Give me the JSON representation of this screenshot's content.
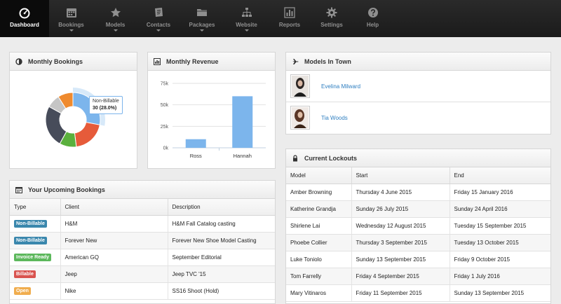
{
  "nav": {
    "items": [
      {
        "label": "Dashboard",
        "icon": "dashboard-gauge-icon",
        "active": true,
        "dropdown": false
      },
      {
        "label": "Bookings",
        "icon": "calendar-icon",
        "active": false,
        "dropdown": true
      },
      {
        "label": "Models",
        "icon": "star-icon",
        "active": false,
        "dropdown": true
      },
      {
        "label": "Contacts",
        "icon": "address-book-icon",
        "active": false,
        "dropdown": true
      },
      {
        "label": "Packages",
        "icon": "folder-icon",
        "active": false,
        "dropdown": true
      },
      {
        "label": "Website",
        "icon": "sitemap-icon",
        "active": false,
        "dropdown": true
      },
      {
        "label": "Reports",
        "icon": "bar-chart-icon",
        "active": false,
        "dropdown": false
      },
      {
        "label": "Settings",
        "icon": "gear-icon",
        "active": false,
        "dropdown": false
      },
      {
        "label": "Help",
        "icon": "help-icon",
        "active": false,
        "dropdown": false
      }
    ]
  },
  "monthly_bookings": {
    "title": "Monthly Bookings",
    "tooltip": {
      "label": "Non-Billable",
      "value": "30 (28.0%)"
    },
    "chart_data": {
      "type": "pie",
      "slices": [
        {
          "name": "Non-Billable",
          "value": 28.0,
          "color": "#7cb5ec",
          "highlight": true
        },
        {
          "name": "",
          "value": 20,
          "color": "#e65b3a"
        },
        {
          "name": "",
          "value": 10,
          "color": "#5ab03d"
        },
        {
          "name": "",
          "value": 25,
          "color": "#474c5a"
        },
        {
          "name": "",
          "value": 8,
          "color": "#c5c5c5"
        },
        {
          "name": "",
          "value": 9,
          "color": "#ef8a2e"
        }
      ]
    }
  },
  "monthly_revenue": {
    "title": "Monthly Revenue",
    "chart_data": {
      "type": "bar",
      "categories": [
        "Ross",
        "Hannah"
      ],
      "values": [
        10000,
        60000
      ],
      "ylim": [
        0,
        75000
      ],
      "yticks": [
        "0k",
        "25k",
        "50k",
        "75k"
      ],
      "ytick_values": [
        0,
        25000,
        50000,
        75000
      ],
      "color": "#7cb5ec",
      "grid": true
    }
  },
  "models_in_town": {
    "title": "Models In Town",
    "models": [
      {
        "name": "Evelina Milward"
      },
      {
        "name": "Tia Woods"
      }
    ]
  },
  "lockouts": {
    "title": "Current Lockouts",
    "columns": [
      "Model",
      "Start",
      "End"
    ],
    "rows": [
      [
        "Amber Browning",
        "Thursday 4 June 2015",
        "Friday 15 January 2016"
      ],
      [
        "Katherine Grandja",
        "Sunday 26 July 2015",
        "Sunday 24 April 2016"
      ],
      [
        "Shirlene Lai",
        "Wednesday 12 August 2015",
        "Tuesday 15 September 2015"
      ],
      [
        "Phoebe Collier",
        "Thursday 3 September 2015",
        "Tuesday 13 October 2015"
      ],
      [
        "Luke Toniolo",
        "Sunday 13 September 2015",
        "Friday 9 October 2015"
      ],
      [
        "Tom Farrelly",
        "Friday 4 September 2015",
        "Friday 1 July 2016"
      ],
      [
        "Mary Vitinaros",
        "Friday 11 September 2015",
        "Sunday 13 September 2015"
      ]
    ]
  },
  "upcoming": {
    "title": "Your Upcoming Bookings",
    "columns": [
      "Type",
      "Client",
      "Description"
    ],
    "rows": [
      {
        "type": "Non-Billable",
        "type_color": "#3a87ad",
        "client": "H&M",
        "description": "H&M Fall Catalog casting"
      },
      {
        "type": "Non-Billable",
        "type_color": "#3a87ad",
        "client": "Forever New",
        "description": "Forever New Shoe Model Casting"
      },
      {
        "type": "Invoice Ready",
        "type_color": "#5cb85c",
        "client": "American GQ",
        "description": "September Editorial"
      },
      {
        "type": "Billable",
        "type_color": "#d9534f",
        "client": "Jeep",
        "description": "Jeep TVC '15"
      },
      {
        "type": "Open",
        "type_color": "#f0ad4e",
        "client": "Nike",
        "description": "SS16 Shoot (Hold)"
      }
    ]
  }
}
